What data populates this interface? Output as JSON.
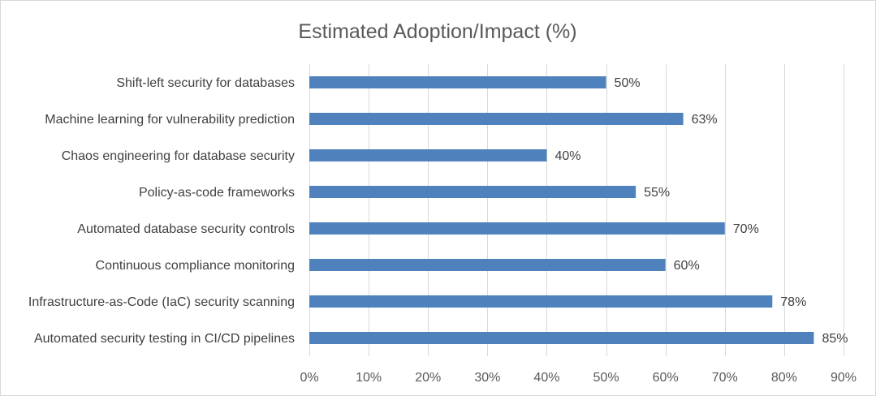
{
  "chart_data": {
    "type": "bar",
    "orientation": "horizontal",
    "title": "Estimated Adoption/Impact (%)",
    "xlabel": "",
    "ylabel": "",
    "categories": [
      "Shift-left security for databases",
      "Machine learning for vulnerability prediction",
      "Chaos engineering for database security",
      "Policy-as-code frameworks",
      "Automated database security controls",
      "Continuous compliance monitoring",
      "Infrastructure-as-Code (IaC) security scanning",
      "Automated security testing in CI/CD pipelines"
    ],
    "values": [
      50,
      63,
      40,
      55,
      70,
      60,
      78,
      85
    ],
    "data_labels": [
      "50%",
      "63%",
      "40%",
      "55%",
      "70%",
      "60%",
      "78%",
      "85%"
    ],
    "xlim": [
      0,
      90
    ],
    "x_ticks": [
      0,
      10,
      20,
      30,
      40,
      50,
      60,
      70,
      80,
      90
    ],
    "x_tick_labels": [
      "0%",
      "10%",
      "20%",
      "30%",
      "40%",
      "50%",
      "60%",
      "70%",
      "80%",
      "90%"
    ],
    "grid": "vertical",
    "legend": "none",
    "bar_color": "#4f81bd"
  }
}
